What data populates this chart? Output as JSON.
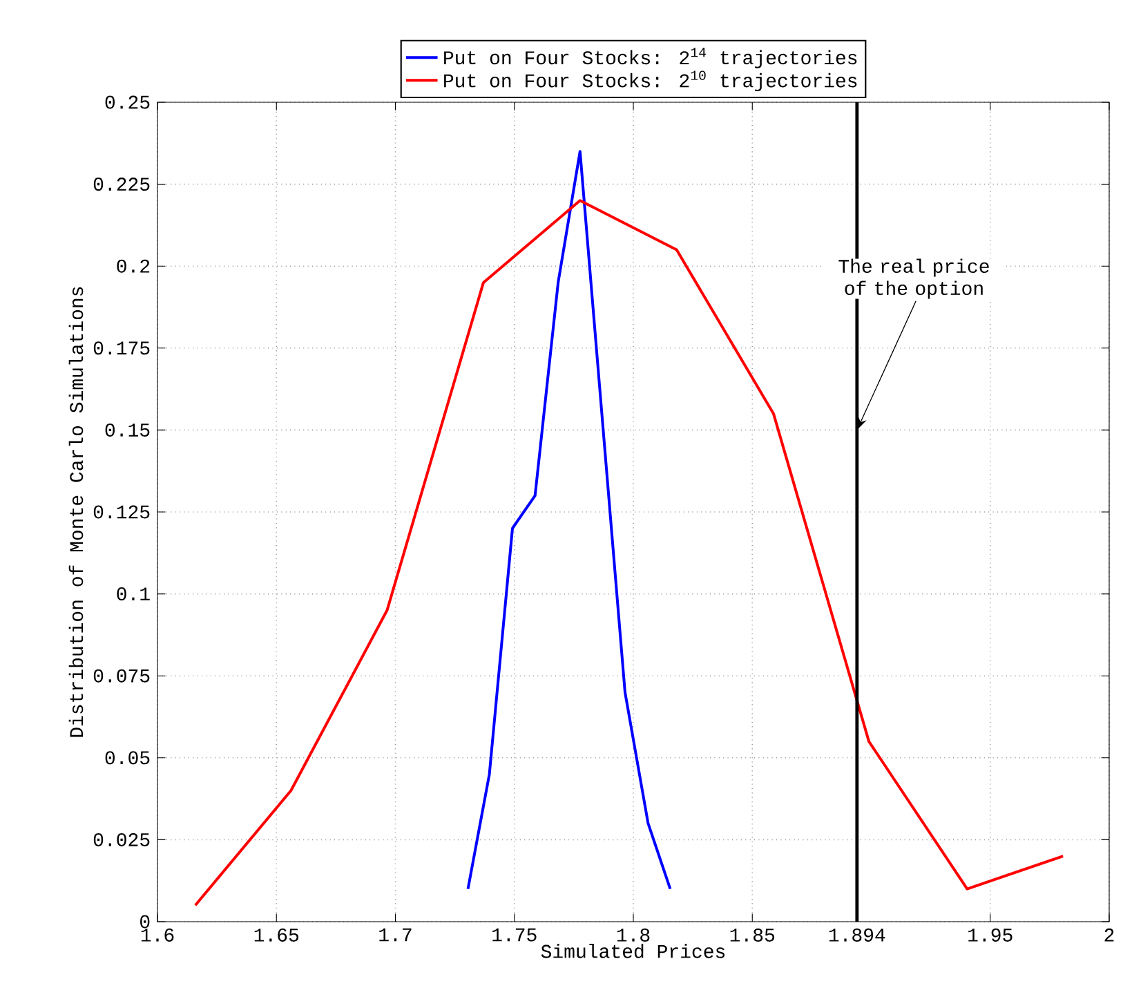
{
  "chart_data": {
    "type": "line",
    "xlabel": "Simulated Prices",
    "ylabel": "Distribution of Monte Carlo Simulations",
    "xlim": [
      1.6,
      2
    ],
    "xticks": [
      1.6,
      1.65,
      1.7,
      1.75,
      1.8,
      1.85,
      1.894,
      1.95,
      2
    ],
    "ylim": [
      0,
      0.25
    ],
    "yticks": [
      0,
      0.025,
      0.05,
      0.075,
      0.1,
      0.125,
      0.15,
      0.175,
      0.2,
      0.225,
      0.25
    ],
    "grid": true,
    "legend": "top",
    "line_style": "solid",
    "series": [
      {
        "name": "Put on Four Stocks: 2$^{14}$  trajectories",
        "color": "#0000ff",
        "x": [
          1.7305,
          1.7395,
          1.7492,
          1.7587,
          1.7684,
          1.7776,
          1.7965,
          1.8062,
          1.8155
        ],
        "values": [
          0.01,
          0.045,
          0.12,
          0.13,
          0.195,
          0.235,
          0.07,
          0.03,
          0.01
        ]
      },
      {
        "name": "Put on Four Stocks: 2$^{10}$  trajectories",
        "color": "#ff0000",
        "x": [
          1.6159,
          1.6561,
          1.6965,
          1.737,
          1.7776,
          1.8182,
          1.8589,
          1.899,
          1.9403,
          1.9806
        ],
        "values": [
          0.005,
          0.04,
          0.095,
          0.195,
          0.22,
          0.205,
          0.155,
          0.055,
          0.01,
          0.02
        ]
      }
    ],
    "ref_lines": [
      {
        "axis": "x",
        "value": 1.894,
        "color": "#000000"
      }
    ],
    "annotations": [
      {
        "text": "The real price of the option",
        "x": 1.894,
        "y": 0.15
      }
    ]
  }
}
